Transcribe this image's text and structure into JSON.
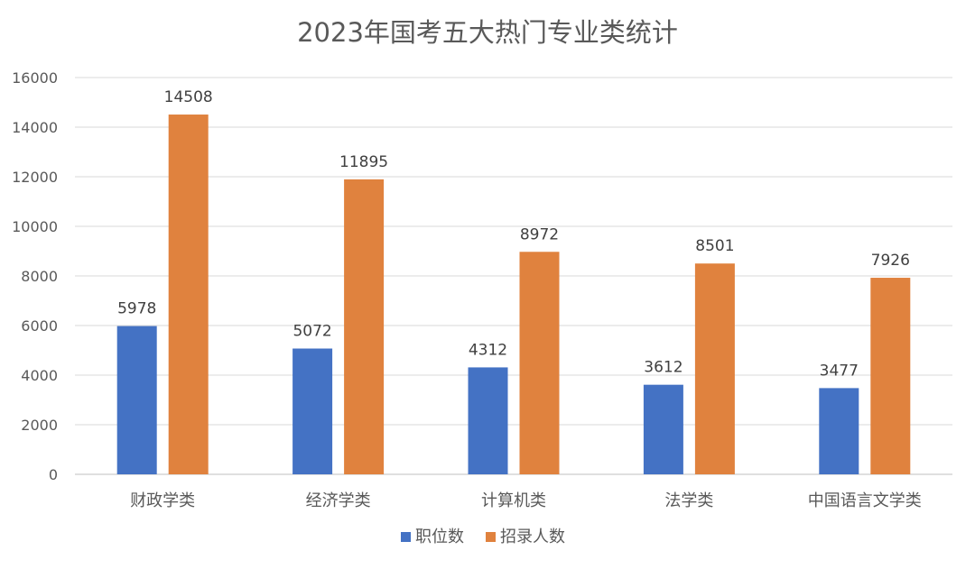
{
  "chart_data": {
    "type": "bar",
    "title": "2023年国考五大热门专业类统计",
    "categories": [
      "财政学类",
      "经济学类",
      "计算机类",
      "法学类",
      "中国语言文学类"
    ],
    "series": [
      {
        "name": "职位数",
        "color": "#4472c4",
        "values": [
          5978,
          5072,
          4312,
          3612,
          3477
        ]
      },
      {
        "name": "招录人数",
        "color": "#e0823e",
        "values": [
          14508,
          11895,
          8972,
          8501,
          7926
        ]
      }
    ],
    "yticks": [
      0,
      2000,
      4000,
      6000,
      8000,
      10000,
      12000,
      14000,
      16000
    ],
    "ylim": [
      0,
      16000
    ],
    "grid": true,
    "legend_position": "bottom"
  }
}
